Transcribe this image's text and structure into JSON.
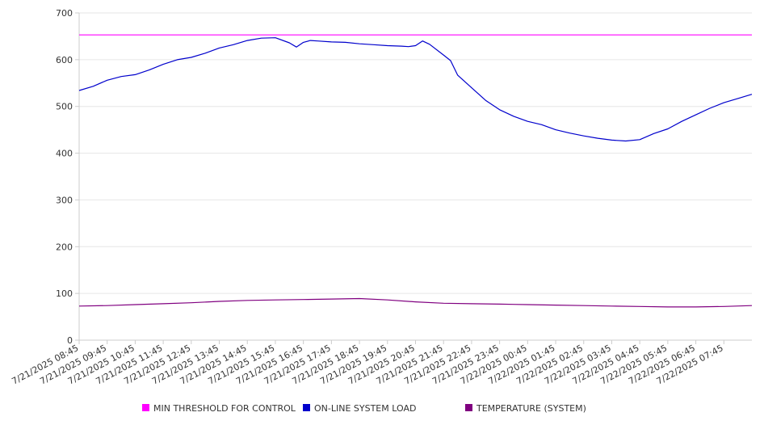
{
  "chart_data": {
    "type": "line",
    "title": "",
    "xlabel": "",
    "ylabel": "",
    "ylim": [
      0,
      700
    ],
    "yticks": [
      0,
      100,
      200,
      300,
      400,
      500,
      600,
      700
    ],
    "xlim": [
      "7/21/2025 08:45",
      "7/22/2025 08:45"
    ],
    "xticks": [
      "7/21/2025 08:45",
      "7/21/2025 09:45",
      "7/21/2025 10:45",
      "7/21/2025 11:45",
      "7/21/2025 12:45",
      "7/21/2025 13:45",
      "7/21/2025 14:45",
      "7/21/2025 15:45",
      "7/21/2025 16:45",
      "7/21/2025 17:45",
      "7/21/2025 18:45",
      "7/21/2025 19:45",
      "7/21/2025 20:45",
      "7/21/2025 21:45",
      "7/21/2025 22:45",
      "7/21/2025 23:45",
      "7/22/2025 00:45",
      "7/22/2025 01:45",
      "7/22/2025 02:45",
      "7/22/2025 03:45",
      "7/22/2025 04:45",
      "7/22/2025 05:45",
      "7/22/2025 06:45",
      "7/22/2025 07:45"
    ],
    "grid": true,
    "legend_position": "bottom",
    "series": [
      {
        "name": "MIN THRESHOLD FOR CONTROL",
        "color": "#ff00ff",
        "x": [
          "7/21/2025 08:45",
          "7/22/2025 08:45"
        ],
        "values": [
          653,
          653
        ]
      },
      {
        "name": "ON-LINE SYSTEM LOAD",
        "color": "#0000cc",
        "x": [
          "7/21/2025 08:45",
          "7/21/2025 09:15",
          "7/21/2025 09:45",
          "7/21/2025 10:15",
          "7/21/2025 10:45",
          "7/21/2025 11:15",
          "7/21/2025 11:45",
          "7/21/2025 12:15",
          "7/21/2025 12:45",
          "7/21/2025 13:15",
          "7/21/2025 13:45",
          "7/21/2025 14:15",
          "7/21/2025 14:45",
          "7/21/2025 15:15",
          "7/21/2025 15:45",
          "7/21/2025 16:15",
          "7/21/2025 16:30",
          "7/21/2025 16:45",
          "7/21/2025 17:00",
          "7/21/2025 17:15",
          "7/21/2025 17:45",
          "7/21/2025 18:15",
          "7/21/2025 18:45",
          "7/21/2025 19:15",
          "7/21/2025 19:45",
          "7/21/2025 20:15",
          "7/21/2025 20:30",
          "7/21/2025 20:45",
          "7/21/2025 21:00",
          "7/21/2025 21:15",
          "7/21/2025 21:45",
          "7/21/2025 22:00",
          "7/21/2025 22:15",
          "7/21/2025 22:45",
          "7/21/2025 23:15",
          "7/21/2025 23:45",
          "7/22/2025 00:15",
          "7/22/2025 00:45",
          "7/22/2025 01:15",
          "7/22/2025 01:45",
          "7/22/2025 02:15",
          "7/22/2025 02:45",
          "7/22/2025 03:15",
          "7/22/2025 03:45",
          "7/22/2025 04:15",
          "7/22/2025 04:45",
          "7/22/2025 05:15",
          "7/22/2025 05:45",
          "7/22/2025 06:15",
          "7/22/2025 06:45",
          "7/22/2025 07:15",
          "7/22/2025 07:45",
          "7/22/2025 08:15",
          "7/22/2025 08:45"
        ],
        "values": [
          534,
          543,
          556,
          564,
          568,
          578,
          590,
          600,
          605,
          614,
          625,
          632,
          641,
          646,
          647,
          636,
          627,
          637,
          641,
          640,
          638,
          637,
          634,
          632,
          630,
          629,
          628,
          630,
          640,
          633,
          610,
          598,
          567,
          540,
          513,
          493,
          479,
          468,
          461,
          450,
          443,
          437,
          432,
          428,
          426,
          429,
          442,
          452,
          468,
          482,
          496,
          508,
          517,
          526
        ]
      },
      {
        "name": "TEMPERATURE (SYSTEM)",
        "color": "#800080",
        "x": [
          "7/21/2025 08:45",
          "7/21/2025 09:45",
          "7/21/2025 10:45",
          "7/21/2025 11:45",
          "7/21/2025 12:45",
          "7/21/2025 13:45",
          "7/21/2025 14:45",
          "7/21/2025 15:45",
          "7/21/2025 16:45",
          "7/21/2025 17:45",
          "7/21/2025 18:45",
          "7/21/2025 19:45",
          "7/21/2025 20:45",
          "7/21/2025 21:45",
          "7/21/2025 22:45",
          "7/21/2025 23:45",
          "7/22/2025 00:45",
          "7/22/2025 01:45",
          "7/22/2025 02:45",
          "7/22/2025 03:45",
          "7/22/2025 04:45",
          "7/22/2025 05:45",
          "7/22/2025 06:45",
          "7/22/2025 07:45",
          "7/22/2025 08:45"
        ],
        "values": [
          73,
          74,
          76,
          78,
          80,
          83,
          85,
          86,
          87,
          88,
          89,
          86,
          82,
          79,
          78,
          77,
          76,
          75,
          74,
          73,
          72,
          71,
          71,
          72,
          74
        ]
      }
    ]
  }
}
